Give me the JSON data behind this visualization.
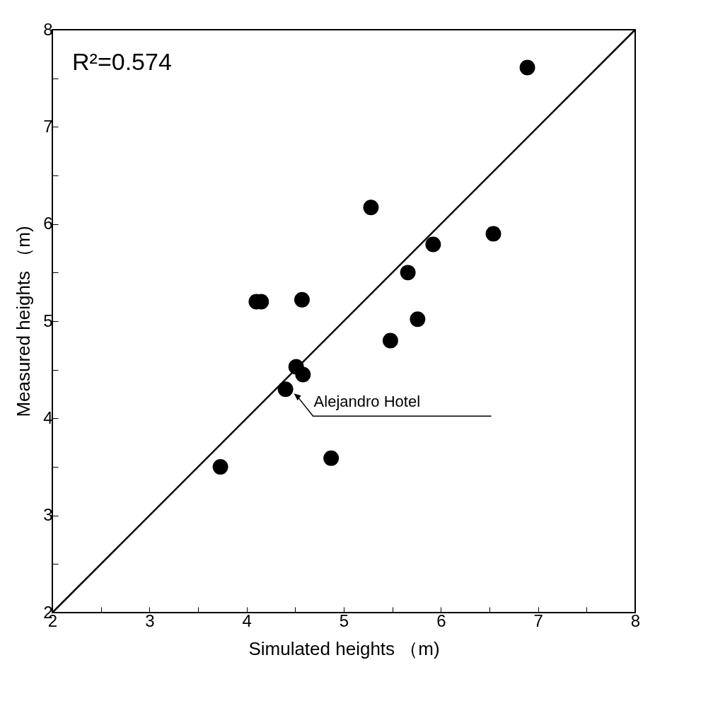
{
  "chart_data": {
    "type": "scatter",
    "xlabel": "Simulated heights （m)",
    "ylabel": "Measured heights （m)",
    "xlim": [
      2,
      8
    ],
    "ylim": [
      2,
      8
    ],
    "xticks": [
      2,
      {
        "value": 2.5,
        "label": null
      },
      3,
      {
        "value": 3.5,
        "label": null
      },
      4,
      {
        "value": 4.5,
        "label": null
      },
      5,
      {
        "value": 5.5,
        "label": null
      },
      6,
      {
        "value": 6.5,
        "label": null
      },
      7,
      {
        "value": 7.5,
        "label": null
      },
      8
    ],
    "yticks": [
      2,
      {
        "value": 2.5,
        "label": null
      },
      3,
      {
        "value": 3.5,
        "label": null
      },
      4,
      {
        "value": 4.5,
        "label": null
      },
      5,
      {
        "value": 5.5,
        "label": null
      },
      6,
      {
        "value": 6.5,
        "label": null
      },
      7,
      {
        "value": 7.5,
        "label": null
      },
      8
    ],
    "grid": false,
    "marker": "circle",
    "series": [
      {
        "type": "scatter",
        "color": "#000000",
        "x": [
          6.89,
          5.28,
          6.54,
          5.92,
          5.66,
          4.1,
          4.15,
          4.57,
          5.76,
          5.48,
          4.51,
          4.58,
          4.4,
          4.87,
          3.73
        ],
        "values": [
          7.61,
          6.17,
          5.9,
          5.79,
          5.5,
          5.2,
          5.2,
          5.22,
          5.02,
          4.8,
          4.53,
          4.45,
          4.3,
          3.59,
          3.5
        ]
      },
      {
        "type": "line",
        "color": "#000000",
        "line_style": "solid",
        "marker": "none",
        "x": [
          2,
          8
        ],
        "values": [
          2,
          8
        ]
      }
    ],
    "annotations": [
      "R²=0.574",
      {
        "text": "Alejandro Hotel",
        "x": 4.4,
        "y": 4.3
      }
    ]
  }
}
